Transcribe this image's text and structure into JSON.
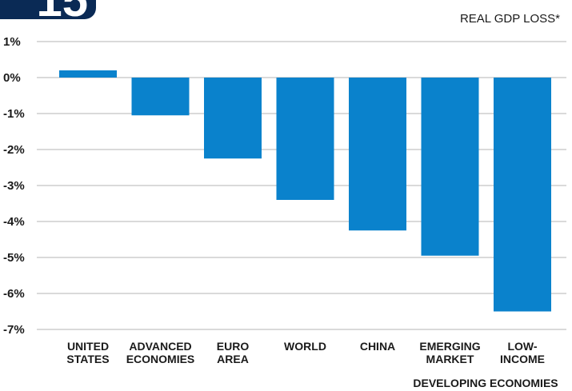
{
  "header": {
    "badge_text": "15",
    "badge_color": "#0a2a55"
  },
  "chart_data": {
    "type": "bar",
    "title": "",
    "ylabel": "REAL GDP LOSS*",
    "xlabel": "",
    "ylim": [
      -7,
      1
    ],
    "yticks": [
      1,
      0,
      -1,
      -2,
      -3,
      -4,
      -5,
      -6,
      -7
    ],
    "ytick_labels": [
      "1%",
      "0%",
      "-1%",
      "-2%",
      "-3%",
      "-4%",
      "-5%",
      "-6%",
      "-7%"
    ],
    "grid": true,
    "bar_color": "#0a82cc",
    "categories": [
      [
        "UNITED",
        "STATES"
      ],
      [
        "ADVANCED",
        "ECONOMIES"
      ],
      [
        "EURO",
        "AREA"
      ],
      [
        "WORLD"
      ],
      [
        "CHINA"
      ],
      [
        "EMERGING",
        "MARKET"
      ],
      [
        "LOW-",
        "INCOME"
      ]
    ],
    "values": [
      0.2,
      -1.05,
      -2.25,
      -3.4,
      -4.25,
      -4.95,
      -6.5
    ],
    "group_label": "DEVELOPING ECONOMIES"
  }
}
